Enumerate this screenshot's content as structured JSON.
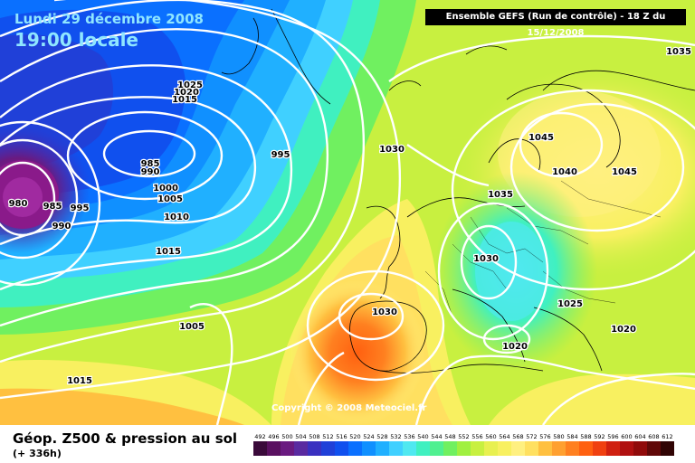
{
  "header": {
    "date": "Lundi 29 décembre 2008",
    "time": "19:00 locale",
    "run_info": "Ensemble GEFS (Run de contrôle) - 18 Z du 15/12/2008"
  },
  "copyright": "Copyright © 2008 Meteociel.fr",
  "footer": {
    "title": "Géop. Z500 & pression au sol",
    "subtitle": "(+ 336h)"
  },
  "legend": {
    "values": [
      "492",
      "496",
      "500",
      "504",
      "508",
      "512",
      "516",
      "520",
      "524",
      "528",
      "532",
      "536",
      "540",
      "544",
      "548",
      "552",
      "556",
      "560",
      "564",
      "568",
      "572",
      "576",
      "580",
      "584",
      "588",
      "592",
      "596",
      "600",
      "604",
      "608",
      "612"
    ],
    "colors": [
      "#3a0a3a",
      "#5a1060",
      "#6a1a80",
      "#5a2aa0",
      "#3a30c0",
      "#2040d8",
      "#1050ee",
      "#0a70ff",
      "#1090ff",
      "#20b0ff",
      "#40d0ff",
      "#50e8f0",
      "#40f0c0",
      "#50f090",
      "#70f060",
      "#a0f040",
      "#c8f040",
      "#e8f050",
      "#f8f060",
      "#fff080",
      "#ffe060",
      "#ffc040",
      "#ffa030",
      "#ff8020",
      "#ff6010",
      "#f04010",
      "#d02010",
      "#b01010",
      "#900a0a",
      "#600808",
      "#300404"
    ]
  },
  "pressure_labels": [
    {
      "text": "1025"
    },
    {
      "text": "1020"
    },
    {
      "text": "1015"
    },
    {
      "text": "985"
    },
    {
      "text": "990"
    },
    {
      "text": "995"
    },
    {
      "text": "1000"
    },
    {
      "text": "1005"
    },
    {
      "text": "1010"
    },
    {
      "text": "980"
    },
    {
      "text": "985"
    },
    {
      "text": "995"
    },
    {
      "text": "990"
    },
    {
      "text": "1015"
    },
    {
      "text": "1005"
    },
    {
      "text": "1015"
    },
    {
      "text": "1030"
    },
    {
      "text": "1030"
    },
    {
      "text": "1045"
    },
    {
      "text": "1040"
    },
    {
      "text": "1045"
    },
    {
      "text": "1035"
    },
    {
      "text": "1030"
    },
    {
      "text": "1025"
    },
    {
      "text": "1020"
    },
    {
      "text": "1020"
    },
    {
      "text": "1035"
    }
  ]
}
